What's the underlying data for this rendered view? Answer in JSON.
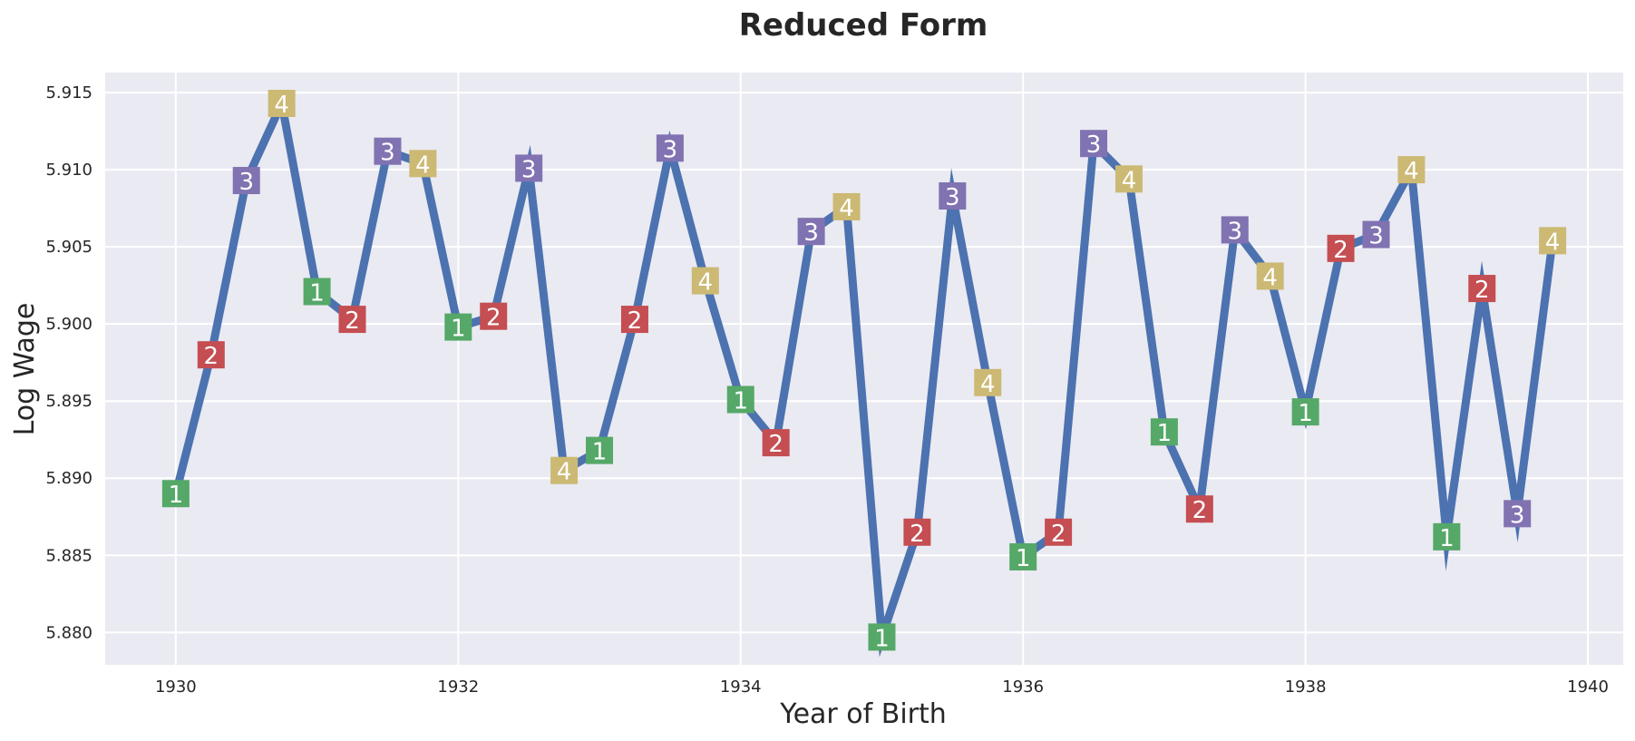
{
  "chart_data": {
    "type": "line",
    "title": "Reduced Form",
    "xlabel": "Year of Birth",
    "ylabel": "Log Wage",
    "xlim": [
      1929.5,
      1940.25
    ],
    "ylim": [
      5.8779,
      5.9163
    ],
    "xticks": [
      1930,
      1932,
      1934,
      1936,
      1938,
      1940
    ],
    "yticks": [
      5.88,
      5.885,
      5.89,
      5.895,
      5.9,
      5.905,
      5.91,
      5.915
    ],
    "xtick_labels": [
      "1930",
      "1932",
      "1934",
      "1936",
      "1938",
      "1940"
    ],
    "ytick_labels": [
      "5.880",
      "5.885",
      "5.890",
      "5.895",
      "5.900",
      "5.905",
      "5.910",
      "5.915"
    ],
    "grid": true,
    "legend": "none",
    "colors": {
      "background": "#eaeaf2",
      "grid": "#ffffff",
      "line": "#4c72b0",
      "q1": "#55a868",
      "q2": "#c44e52",
      "q3": "#8172b2",
      "q4": "#ccb974"
    },
    "points": [
      {
        "x": 1930.0,
        "y": 5.889,
        "q": "1"
      },
      {
        "x": 1930.25,
        "y": 5.898,
        "q": "2"
      },
      {
        "x": 1930.5,
        "y": 5.9093,
        "q": "3"
      },
      {
        "x": 1930.75,
        "y": 5.9143,
        "q": "4"
      },
      {
        "x": 1931.0,
        "y": 5.9021,
        "q": "1"
      },
      {
        "x": 1931.25,
        "y": 5.9003,
        "q": "2"
      },
      {
        "x": 1931.5,
        "y": 5.9112,
        "q": "3"
      },
      {
        "x": 1931.75,
        "y": 5.9104,
        "q": "4"
      },
      {
        "x": 1932.0,
        "y": 5.8998,
        "q": "1"
      },
      {
        "x": 1932.25,
        "y": 5.9005,
        "q": "2"
      },
      {
        "x": 1932.5,
        "y": 5.9101,
        "q": "3"
      },
      {
        "x": 1932.75,
        "y": 5.8905,
        "q": "4"
      },
      {
        "x": 1933.0,
        "y": 5.8918,
        "q": "1"
      },
      {
        "x": 1933.25,
        "y": 5.9003,
        "q": "2"
      },
      {
        "x": 1933.5,
        "y": 5.9114,
        "q": "3"
      },
      {
        "x": 1933.75,
        "y": 5.9028,
        "q": "4"
      },
      {
        "x": 1934.0,
        "y": 5.8951,
        "q": "1"
      },
      {
        "x": 1934.25,
        "y": 5.8923,
        "q": "2"
      },
      {
        "x": 1934.5,
        "y": 5.906,
        "q": "3"
      },
      {
        "x": 1934.75,
        "y": 5.9076,
        "q": "4"
      },
      {
        "x": 1935.0,
        "y": 5.8797,
        "q": "1"
      },
      {
        "x": 1935.25,
        "y": 5.8865,
        "q": "2"
      },
      {
        "x": 1935.5,
        "y": 5.9083,
        "q": "3"
      },
      {
        "x": 1935.75,
        "y": 5.8962,
        "q": "4"
      },
      {
        "x": 1936.0,
        "y": 5.8849,
        "q": "1"
      },
      {
        "x": 1936.25,
        "y": 5.8865,
        "q": "2"
      },
      {
        "x": 1936.5,
        "y": 5.9117,
        "q": "3"
      },
      {
        "x": 1936.75,
        "y": 5.9094,
        "q": "4"
      },
      {
        "x": 1937.0,
        "y": 5.893,
        "q": "1"
      },
      {
        "x": 1937.25,
        "y": 5.888,
        "q": "2"
      },
      {
        "x": 1937.5,
        "y": 5.9061,
        "q": "3"
      },
      {
        "x": 1937.75,
        "y": 5.9031,
        "q": "4"
      },
      {
        "x": 1938.0,
        "y": 5.8943,
        "q": "1"
      },
      {
        "x": 1938.25,
        "y": 5.9049,
        "q": "2"
      },
      {
        "x": 1938.5,
        "y": 5.9058,
        "q": "3"
      },
      {
        "x": 1938.75,
        "y": 5.91,
        "q": "4"
      },
      {
        "x": 1939.0,
        "y": 5.8862,
        "q": "1"
      },
      {
        "x": 1939.25,
        "y": 5.9023,
        "q": "2"
      },
      {
        "x": 1939.5,
        "y": 5.8877,
        "q": "3"
      },
      {
        "x": 1939.75,
        "y": 5.9054,
        "q": "4"
      }
    ]
  }
}
